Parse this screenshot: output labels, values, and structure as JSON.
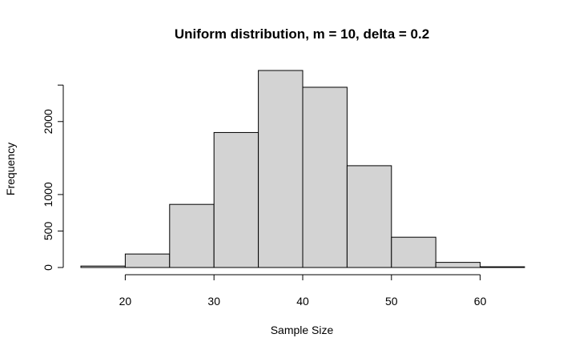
{
  "chart_data": {
    "type": "bar",
    "title": "Uniform distribution, m = 10, delta = 0.2",
    "xlabel": "Sample Size",
    "ylabel": "Frequency",
    "bins": [
      {
        "x0": 15,
        "x1": 20,
        "count": 20
      },
      {
        "x0": 20,
        "x1": 25,
        "count": 185
      },
      {
        "x0": 25,
        "x1": 30,
        "count": 865
      },
      {
        "x0": 30,
        "x1": 35,
        "count": 1850
      },
      {
        "x0": 35,
        "x1": 40,
        "count": 2700
      },
      {
        "x0": 40,
        "x1": 45,
        "count": 2470
      },
      {
        "x0": 45,
        "x1": 50,
        "count": 1395
      },
      {
        "x0": 50,
        "x1": 55,
        "count": 415
      },
      {
        "x0": 55,
        "x1": 60,
        "count": 70
      },
      {
        "x0": 60,
        "x1": 65,
        "count": 10
      }
    ],
    "xticks": [
      20,
      30,
      40,
      50,
      60
    ],
    "yticks": [
      0,
      500,
      1000,
      2000,
      2500
    ],
    "yticks_labeled": [
      0,
      500,
      1000,
      2000
    ],
    "xlim": [
      15,
      65
    ],
    "ylim": [
      0,
      2700
    ],
    "bar_color": "#d3d3d3",
    "edge_color": "#000000",
    "grid": false,
    "legend": "none"
  }
}
